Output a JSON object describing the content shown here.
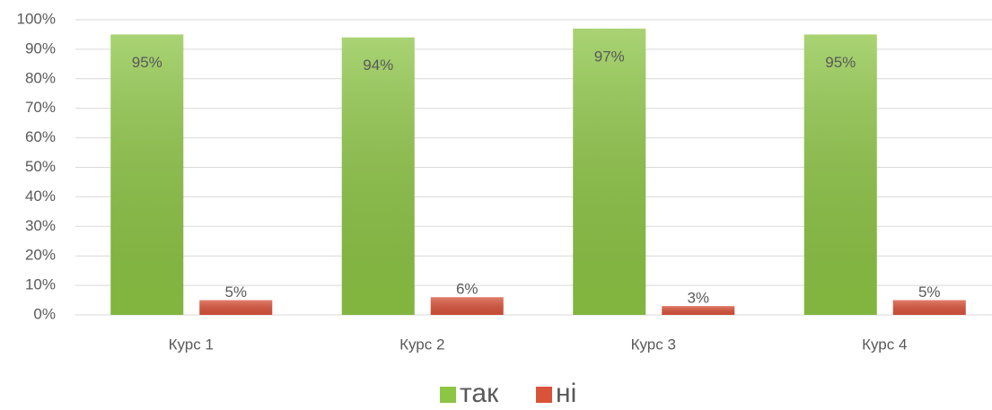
{
  "chart_data": {
    "type": "bar",
    "categories": [
      "Курс 1",
      "Курс 2",
      "Курс 3",
      "Курс 4"
    ],
    "series": [
      {
        "name": "так",
        "color": "#8dc545",
        "values": [
          95,
          94,
          97,
          95
        ],
        "value_labels": [
          "95%",
          "94%",
          "97%",
          "95%"
        ]
      },
      {
        "name": "ні",
        "color": "#d9533a",
        "values": [
          5,
          6,
          3,
          5
        ],
        "value_labels": [
          "5%",
          "6%",
          "3%",
          "5%"
        ]
      }
    ],
    "ylim": [
      0,
      100
    ],
    "yticks": [
      {
        "value": 0,
        "label": "0%"
      },
      {
        "value": 10,
        "label": "10%"
      },
      {
        "value": 20,
        "label": "20%"
      },
      {
        "value": 30,
        "label": "30%"
      },
      {
        "value": 40,
        "label": "40%"
      },
      {
        "value": 50,
        "label": "50%"
      },
      {
        "value": 60,
        "label": "60%"
      },
      {
        "value": 70,
        "label": "70%"
      },
      {
        "value": 80,
        "label": "80%"
      },
      {
        "value": 90,
        "label": "90%"
      },
      {
        "value": 100,
        "label": "100%"
      }
    ],
    "grid": true,
    "legend": "bottom"
  }
}
